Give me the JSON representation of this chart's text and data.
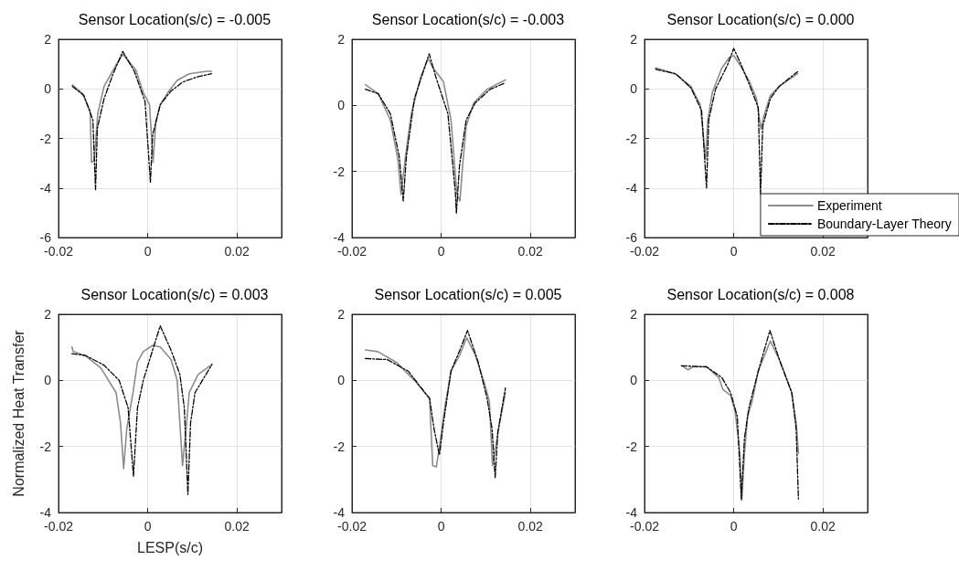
{
  "chart_data": [
    {
      "type": "line",
      "title": "Sensor Location(s/c) = -0.005",
      "xlim": [
        -0.02,
        0.03
      ],
      "xticks": [
        -0.02,
        0,
        0.02
      ],
      "ylim": [
        -6,
        2
      ],
      "yticks": [
        -6,
        -4,
        -2,
        0,
        2
      ],
      "grid": true,
      "series": [
        {
          "color": "#8c8c8c",
          "line_style": "solid",
          "x": [
            -0.0169,
            -0.0146,
            -0.0129,
            -0.0126,
            -0.012,
            -0.0112,
            -0.0098,
            -0.0071,
            -0.0056,
            -0.0027,
            -0.001,
            0.0004,
            0.0012,
            0.0018,
            0.0028,
            0.0045,
            0.0066,
            0.0093,
            0.0133,
            0.0143
          ],
          "values": [
            0.16,
            -0.2,
            -0.9,
            -2.97,
            -2.9,
            -1.0,
            0.1,
            0.96,
            1.39,
            0.77,
            -0.15,
            -0.64,
            -2.97,
            -1.37,
            -0.64,
            -0.15,
            0.34,
            0.61,
            0.71,
            0.71
          ]
        },
        {
          "color": "#000000",
          "line_style": "dashed",
          "x": [
            -0.0169,
            -0.0143,
            -0.0123,
            -0.0117,
            -0.0113,
            -0.0098,
            -0.0078,
            -0.0056,
            -0.003,
            -0.0006,
            0.0006,
            0.0011,
            0.0028,
            0.0052,
            0.0079,
            0.0113,
            0.0143
          ],
          "values": [
            0.1,
            -0.27,
            -1.25,
            -4.07,
            -1.6,
            -0.4,
            0.59,
            1.51,
            0.71,
            -0.52,
            -3.77,
            -1.86,
            -0.64,
            -0.09,
            0.28,
            0.49,
            0.61
          ]
        }
      ]
    },
    {
      "type": "line",
      "title": "Sensor Location(s/c) = -0.003",
      "xlim": [
        -0.02,
        0.03
      ],
      "xticks": [
        -0.02,
        0,
        0.02
      ],
      "ylim": [
        -4,
        2
      ],
      "yticks": [
        -4,
        -2,
        0,
        2
      ],
      "grid": true,
      "series": [
        {
          "color": "#8c8c8c",
          "line_style": "solid",
          "x": [
            -0.017,
            -0.0141,
            -0.0114,
            -0.0097,
            -0.009,
            -0.008,
            -0.0067,
            -0.0046,
            -0.0029,
            -0.0019,
            0.0005,
            0.0022,
            0.0035,
            0.0042,
            0.0048,
            0.0056,
            0.0073,
            0.0103,
            0.0144
          ],
          "values": [
            0.63,
            0.35,
            -0.44,
            -1.64,
            -2.7,
            -1.55,
            -0.25,
            0.86,
            1.42,
            1.14,
            0.72,
            -0.44,
            -2.66,
            -2.89,
            -1.83,
            -0.62,
            0.07,
            0.49,
            0.77
          ]
        },
        {
          "color": "#000000",
          "line_style": "dashed",
          "x": [
            -0.017,
            -0.0141,
            -0.0114,
            -0.0094,
            -0.0085,
            -0.0078,
            -0.006,
            -0.0027,
            -0.0012,
            0.0015,
            0.0032,
            0.0034,
            0.0041,
            0.0056,
            0.0076,
            0.011,
            0.0144
          ],
          "values": [
            0.49,
            0.35,
            -0.25,
            -1.55,
            -2.89,
            -1.55,
            0.21,
            1.56,
            0.86,
            -0.25,
            -2.66,
            -3.27,
            -1.83,
            -0.44,
            0.07,
            0.49,
            0.68
          ]
        }
      ]
    },
    {
      "type": "line",
      "title": "Sensor Location(s/c) = 0.000",
      "xlim": [
        -0.02,
        0.03
      ],
      "xticks": [
        -0.02,
        0,
        0.02
      ],
      "ylim": [
        -6,
        2
      ],
      "yticks": [
        -6,
        -4,
        -2,
        0,
        2
      ],
      "grid": true,
      "legend": "bottom right",
      "series": [
        {
          "name": "Experiment",
          "color": "#8c8c8c",
          "line_style": "solid",
          "x": [
            -0.0175,
            -0.0171,
            -0.013,
            -0.0096,
            -0.0075,
            -0.0063,
            -0.0058,
            -0.0048,
            -0.0027,
            -0.001,
            0,
            0.0014,
            0.0034,
            0.0051,
            0.0061,
            0.0067,
            0.0082,
            0.0102,
            0.0143
          ],
          "values": [
            0.85,
            0.83,
            0.59,
            0.1,
            -0.64,
            -2.85,
            -1.25,
            -0.15,
            0.83,
            1.26,
            1.35,
            0.96,
            0.34,
            -0.39,
            -1.62,
            -1.13,
            -0.27,
            0.1,
            0.61
          ]
        },
        {
          "name": "Boundary-Layer Theory",
          "color": "#000000",
          "line_style": "dashed",
          "x": [
            -0.0175,
            -0.0171,
            -0.013,
            -0.0096,
            -0.0072,
            -0.0061,
            -0.0056,
            -0.0041,
            -0.0014,
            0,
            0.0014,
            0.0034,
            0.0055,
            0.006,
            0.0065,
            0.0082,
            0.0102,
            0.0143
          ],
          "values": [
            0.8,
            0.77,
            0.61,
            0.04,
            -0.88,
            -4.0,
            -1.25,
            -0.02,
            0.96,
            1.63,
            1.08,
            0.22,
            -0.76,
            -4.26,
            -1.5,
            -0.39,
            0.1,
            0.69
          ]
        }
      ]
    },
    {
      "type": "line",
      "title": "Sensor Location(s/c) = 0.003",
      "xlabel": "LESP(s/c)",
      "ylabel": "Normalized Heat Transfer",
      "xlim": [
        -0.02,
        0.03
      ],
      "xticks": [
        -0.02,
        0,
        0.02
      ],
      "ylim": [
        -4,
        2
      ],
      "yticks": [
        -4,
        -2,
        0,
        2
      ],
      "grid": true,
      "series": [
        {
          "color": "#8c8c8c",
          "line_style": "solid",
          "x": [
            -0.017,
            -0.0167,
            -0.0139,
            -0.0105,
            -0.0071,
            -0.0061,
            -0.0054,
            -0.0047,
            -0.0033,
            -0.0023,
            -0.001,
            0.0011,
            0.0028,
            0.0052,
            0.0066,
            0.0072,
            0.0078,
            0.0086,
            0.0093,
            0.0113,
            0.0144
          ],
          "values": [
            1.01,
            0.87,
            0.74,
            0.37,
            -0.37,
            -1.29,
            -2.67,
            -1.47,
            -0.37,
            0.55,
            0.87,
            1.06,
            1.01,
            0.64,
            0,
            -1.29,
            -2.58,
            -1.47,
            -0.37,
            0.18,
            0.48
          ]
        },
        {
          "color": "#000000",
          "line_style": "dashed",
          "x": [
            -0.017,
            -0.0139,
            -0.0098,
            -0.0064,
            -0.0044,
            -0.0032,
            -0.0023,
            -0.001,
            0.0011,
            0.0028,
            0.0052,
            0.0072,
            0.0082,
            0.009,
            0.0096,
            0.0106,
            0.0144
          ],
          "values": [
            0.81,
            0.75,
            0.46,
            0,
            -0.83,
            -2.9,
            -0.83,
            0,
            0.92,
            1.65,
            0.92,
            0.18,
            -0.83,
            -3.45,
            -1.29,
            -0.37,
            0.48
          ]
        }
      ]
    },
    {
      "type": "line",
      "title": "Sensor Location(s/c) = 0.005",
      "xlim": [
        -0.02,
        0.03
      ],
      "xticks": [
        -0.02,
        0,
        0.02
      ],
      "ylim": [
        -4,
        2
      ],
      "yticks": [
        -4,
        -2,
        0,
        2
      ],
      "grid": true,
      "series": [
        {
          "color": "#8c8c8c",
          "line_style": "solid",
          "x": [
            -0.017,
            -0.0142,
            -0.0101,
            -0.006,
            -0.0026,
            -0.0019,
            -0.0011,
            -0.0004,
            0.0008,
            0.0022,
            0.0042,
            0.0057,
            0.0076,
            0.0097,
            0.0108,
            0.0115,
            0.0122,
            0.0131,
            0.0144
          ],
          "values": [
            0.92,
            0.87,
            0.55,
            0,
            -0.55,
            -2.58,
            -2.62,
            -2.03,
            -0.83,
            0.28,
            0.78,
            1.29,
            0.78,
            -0.09,
            -0.64,
            -2.58,
            -2.03,
            -1.29,
            -0.37
          ]
        },
        {
          "color": "#000000",
          "line_style": "dashed",
          "x": [
            -0.017,
            -0.0121,
            -0.0074,
            -0.0026,
            -0.0016,
            -0.0004,
            0.0005,
            0.0022,
            0.0042,
            0.0059,
            0.0083,
            0.0103,
            0.0114,
            0.0121,
            0.0127,
            0.0144
          ],
          "values": [
            0.66,
            0.63,
            0.28,
            -0.55,
            -1.47,
            -2.26,
            -1.29,
            0.28,
            0.92,
            1.51,
            0.55,
            -0.55,
            -1.47,
            -2.94,
            -1.56,
            -0.23
          ]
        }
      ]
    },
    {
      "type": "line",
      "title": "Sensor Location(s/c) = 0.008",
      "xlim": [
        -0.02,
        0.03
      ],
      "xticks": [
        -0.02,
        0,
        0.02
      ],
      "ylim": [
        -4,
        2
      ],
      "yticks": [
        -4,
        -2,
        0,
        2
      ],
      "grid": true,
      "series": [
        {
          "color": "#8c8c8c",
          "line_style": "solid",
          "x": [
            -0.0117,
            -0.0102,
            -0.0092,
            -0.0061,
            -0.0034,
            -0.0024,
            -0.0007,
            0.0003,
            0.0014,
            0.0018,
            0.0024,
            0.0031,
            0.0041,
            0.0055,
            0.0082,
            0.0102,
            0.013,
            0.014,
            0.0145
          ],
          "values": [
            0.44,
            0.32,
            0.41,
            0.41,
            0.09,
            -0.28,
            -0.46,
            -0.92,
            -2.21,
            -3.63,
            -2.21,
            -1.1,
            -0.64,
            0.28,
            1.19,
            0.64,
            -0.37,
            -1.29,
            -2.21
          ]
        },
        {
          "color": "#000000",
          "line_style": "dashed",
          "x": [
            -0.0117,
            -0.0061,
            -0.0027,
            -0.0007,
            0.0008,
            0.0017,
            0.0024,
            0.0034,
            0.0055,
            0.0081,
            0.0102,
            0.013,
            0.014,
            0.0145
          ],
          "values": [
            0.44,
            0.41,
            0.09,
            -0.37,
            -1.1,
            -3.59,
            -1.75,
            -0.83,
            0.28,
            1.51,
            0.64,
            -0.37,
            -1.47,
            -3.59
          ]
        }
      ]
    }
  ]
}
